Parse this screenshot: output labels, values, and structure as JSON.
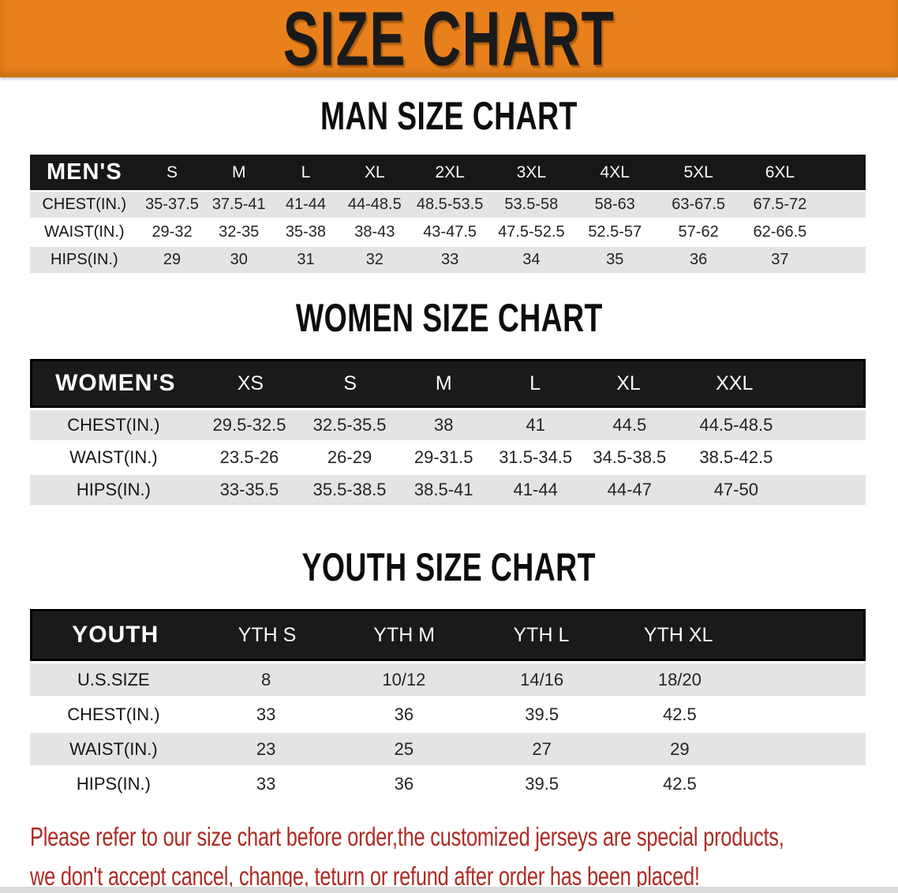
{
  "banner": {
    "title": "SIZE CHART"
  },
  "colors": {
    "banner_bg": "#E8811C",
    "header_bar_bg": "#171717",
    "row_gray": "#E4E4E4",
    "disclaimer_red": "#AE2B25"
  },
  "sections": {
    "men": {
      "heading": "MAN SIZE CHART",
      "header_label": "MEN'S",
      "sizes": [
        "S",
        "M",
        "L",
        "XL",
        "2XL",
        "3XL",
        "4XL",
        "5XL",
        "6XL"
      ],
      "rows": [
        {
          "label": "CHEST(IN.)",
          "values": [
            "35-37.5",
            "37.5-41",
            "41-44",
            "44-48.5",
            "48.5-53.5",
            "53.5-58",
            "58-63",
            "63-67.5",
            "67.5-72"
          ]
        },
        {
          "label": "WAIST(IN.)",
          "values": [
            "29-32",
            "32-35",
            "35-38",
            "38-43",
            "43-47.5",
            "47.5-52.5",
            "52.5-57",
            "57-62",
            "62-66.5"
          ]
        },
        {
          "label": "HIPS(IN.)",
          "values": [
            "29",
            "30",
            "31",
            "32",
            "33",
            "34",
            "35",
            "36",
            "37"
          ]
        }
      ]
    },
    "women": {
      "heading": "WOMEN SIZE CHART",
      "header_label": "WOMEN'S",
      "sizes": [
        "XS",
        "S",
        "M",
        "L",
        "XL",
        "XXL"
      ],
      "rows": [
        {
          "label": "CHEST(IN.)",
          "values": [
            "29.5-32.5",
            "32.5-35.5",
            "38",
            "41",
            "44.5",
            "44.5-48.5"
          ]
        },
        {
          "label": "WAIST(IN.)",
          "values": [
            "23.5-26",
            "26-29",
            "29-31.5",
            "31.5-34.5",
            "34.5-38.5",
            "38.5-42.5"
          ]
        },
        {
          "label": "HIPS(IN.)",
          "values": [
            "33-35.5",
            "35.5-38.5",
            "38.5-41",
            "41-44",
            "44-47",
            "47-50"
          ]
        }
      ]
    },
    "youth": {
      "heading": "YOUTH SIZE CHART",
      "header_label": "YOUTH",
      "sizes": [
        "YTH S",
        "YTH M",
        "YTH L",
        "YTH XL"
      ],
      "rows": [
        {
          "label": "U.S.SIZE",
          "values": [
            "8",
            "10/12",
            "14/16",
            "18/20"
          ]
        },
        {
          "label": "CHEST(IN.)",
          "values": [
            "33",
            "36",
            "39.5",
            "42.5"
          ]
        },
        {
          "label": "WAIST(IN.)",
          "values": [
            "23",
            "25",
            "27",
            "29"
          ]
        },
        {
          "label": "HIPS(IN.)",
          "values": [
            "33",
            "36",
            "39.5",
            "42.5"
          ]
        }
      ]
    }
  },
  "footer": {
    "line1": "Please refer to our size chart before order,the customized jerseys are special products,",
    "line2": "we don't accept cancel, change, teturn or refund after order has been placed!"
  }
}
